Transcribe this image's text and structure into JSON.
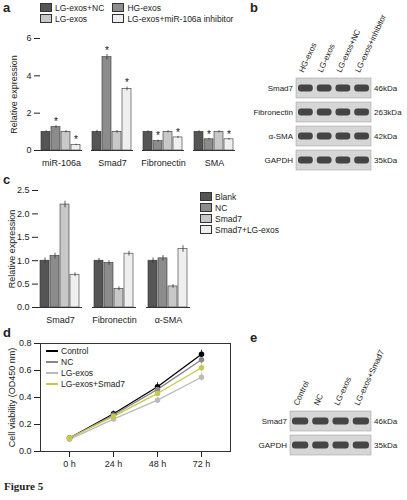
{
  "chart_data": [
    {
      "type": "bar",
      "title": "a",
      "ylabel": "Relative expression",
      "categories": [
        "miR-106a",
        "Smad7",
        "Fibronectin",
        "SMA"
      ],
      "series": [
        {
          "name": "LG-exos+NC",
          "color": "#555555",
          "values": [
            1.0,
            1.0,
            1.0,
            1.0
          ],
          "errors": [
            0.06,
            0.08,
            0.06,
            0.06
          ]
        },
        {
          "name": "HG-exos",
          "color": "#8c8c8c",
          "values": [
            1.25,
            5.0,
            0.5,
            0.6
          ],
          "errors": [
            0.08,
            0.15,
            0.05,
            0.05
          ]
        },
        {
          "name": "LG-exos",
          "color": "#c8c8c8",
          "values": [
            1.0,
            1.0,
            1.0,
            1.0
          ],
          "errors": [
            0.06,
            0.07,
            0.06,
            0.06
          ]
        },
        {
          "name": "LG-exos+miR-106a inhibitor",
          "color": "#efefef",
          "values": [
            0.3,
            3.3,
            0.7,
            0.6
          ],
          "errors": [
            0.04,
            0.1,
            0.05,
            0.05
          ]
        }
      ],
      "annotations": [
        {
          "category": "miR-106a",
          "series": "HG-exos",
          "text": "*"
        },
        {
          "category": "miR-106a",
          "series": "LG-exos+miR-106a inhibitor",
          "text": "*"
        },
        {
          "category": "Smad7",
          "series": "HG-exos",
          "text": "*"
        },
        {
          "category": "Smad7",
          "series": "LG-exos+miR-106a inhibitor",
          "text": "*"
        },
        {
          "category": "Fibronectin",
          "series": "HG-exos",
          "text": "*"
        },
        {
          "category": "Fibronectin",
          "series": "LG-exos+miR-106a inhibitor",
          "text": "*"
        },
        {
          "category": "SMA",
          "series": "HG-exos",
          "text": "*"
        },
        {
          "category": "SMA",
          "series": "LG-exos+miR-106a inhibitor",
          "text": "*"
        }
      ],
      "ylim": [
        0,
        6
      ],
      "yticks": [
        0,
        2,
        4,
        6
      ],
      "legend": "top"
    },
    {
      "type": "bar",
      "title": "c",
      "ylabel": "Relative expression",
      "categories": [
        "Smad7",
        "Fibronectin",
        "α-SMA"
      ],
      "series": [
        {
          "name": "Blank",
          "color": "#555555",
          "values": [
            1.0,
            1.0,
            1.0
          ],
          "errors": [
            0.06,
            0.05,
            0.06
          ]
        },
        {
          "name": "NC",
          "color": "#8c8c8c",
          "values": [
            1.1,
            0.95,
            1.05
          ],
          "errors": [
            0.06,
            0.05,
            0.06
          ]
        },
        {
          "name": "Smad7",
          "color": "#c8c8c8",
          "values": [
            2.2,
            0.4,
            0.45
          ],
          "errors": [
            0.07,
            0.04,
            0.04
          ]
        },
        {
          "name": "Smad7+LG-exos",
          "color": "#efefef",
          "values": [
            0.7,
            1.15,
            1.25
          ],
          "errors": [
            0.04,
            0.05,
            0.07
          ]
        }
      ],
      "annotations": [],
      "ylim": [
        0,
        2.5
      ],
      "yticks": [
        {
          "value": 0,
          "label": "0.0"
        },
        {
          "value": 0.5,
          "label": "0.5"
        },
        {
          "value": 1,
          "label": "1.0"
        },
        {
          "value": 1.5,
          "label": "1.5"
        },
        {
          "value": 2,
          "label": "2.0"
        },
        {
          "value": 2.5,
          "label": "2.5"
        }
      ],
      "legend": "right"
    },
    {
      "type": "line",
      "title": "d",
      "ylabel": "Cell viability (OD450 nm)",
      "categories": [
        "0 h",
        "24 h",
        "48 h",
        "72 h"
      ],
      "series": [
        {
          "name": "Control",
          "color": "#000000",
          "values": [
            0.1,
            0.28,
            0.48,
            0.72
          ],
          "errors": [
            0.01,
            0.02,
            0.03,
            0.03
          ]
        },
        {
          "name": "NC",
          "color": "#888888",
          "values": [
            0.1,
            0.27,
            0.46,
            0.68
          ],
          "errors": [
            0.01,
            0.02,
            0.03,
            0.03
          ]
        },
        {
          "name": "LG-exos",
          "color": "#bbbbbb",
          "values": [
            0.09,
            0.24,
            0.38,
            0.55
          ],
          "errors": [
            0.01,
            0.02,
            0.02,
            0.03
          ]
        },
        {
          "name": "LG-exos+Smad7",
          "color": "#c8c84a",
          "values": [
            0.1,
            0.26,
            0.43,
            0.62
          ],
          "errors": [
            0.01,
            0.02,
            0.02,
            0.03
          ]
        }
      ],
      "marker": "circle",
      "ylim": [
        0,
        0.8
      ],
      "yticks": [
        {
          "value": 0,
          "label": "0.0"
        },
        {
          "value": 0.2,
          "label": "0.2"
        },
        {
          "value": 0.4,
          "label": "0.4"
        },
        {
          "value": 0.6,
          "label": "0.6"
        },
        {
          "value": 0.8,
          "label": "0.8"
        }
      ],
      "legend": "top-left"
    }
  ],
  "blots": [
    {
      "title": "b",
      "lanes": [
        "HG-exos",
        "LG-exos",
        "LG-exos+NC",
        "LG-exos+inhibitor"
      ],
      "rows": [
        {
          "protein": "Smad7",
          "size": "46kDa"
        },
        {
          "protein": "Fibronectin",
          "size": "263kDa"
        },
        {
          "protein": "α-SMA",
          "size": "42kDa"
        },
        {
          "protein": "GAPDH",
          "size": "35kDa"
        }
      ]
    },
    {
      "title": "e",
      "lanes": [
        "Control",
        "NC",
        "LG-exos",
        "LG-exos+Smad7"
      ],
      "rows": [
        {
          "protein": "Smad7",
          "size": "46kDa"
        },
        {
          "protein": "GAPDH",
          "size": "35kDa"
        }
      ]
    }
  ],
  "caption": "Figure 5"
}
